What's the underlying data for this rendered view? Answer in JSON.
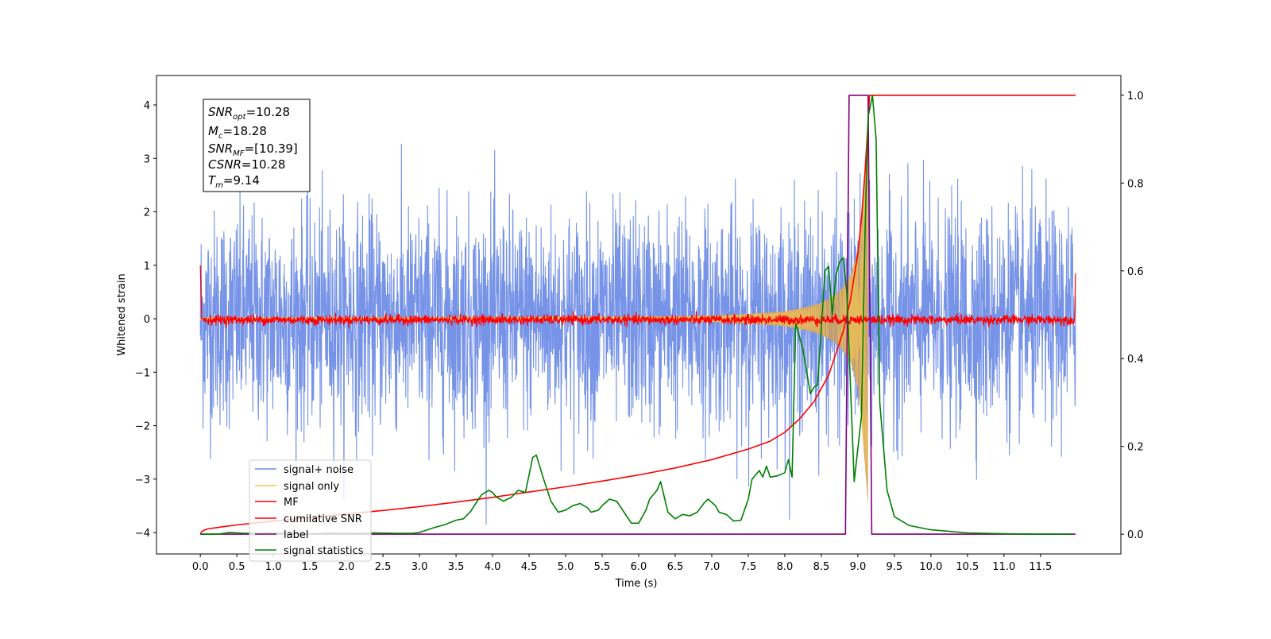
{
  "chart_data": {
    "type": "line",
    "xlabel": "Time (s)",
    "ylabel": "Whitened strain",
    "xlim": [
      -0.6,
      12.6
    ],
    "ylim": [
      -4.4,
      4.55
    ],
    "y2lim": [
      -0.045,
      1.045
    ],
    "grid": false,
    "legend_position": "lower-left",
    "x_ticks": [
      0.0,
      0.5,
      1.0,
      1.5,
      2.0,
      2.5,
      3.0,
      3.5,
      4.0,
      4.5,
      5.0,
      5.5,
      6.0,
      6.5,
      7.0,
      7.5,
      8.0,
      8.5,
      9.0,
      9.5,
      10.0,
      10.5,
      11.0,
      11.5
    ],
    "x_tick_labels": [
      "0.0",
      "0.5",
      "1.0",
      "1.5",
      "2.0",
      "2.5",
      "3.0",
      "3.5",
      "4.0",
      "4.5",
      "5.0",
      "5.5",
      "6.0",
      "6.5",
      "7.0",
      "7.5",
      "8.0",
      "8.5",
      "9.0",
      "9.5",
      "10.0",
      "10.5",
      "11.0",
      "11.5"
    ],
    "y_ticks": [
      4,
      3,
      2,
      1,
      0,
      -1,
      -2,
      -3,
      -4
    ],
    "y_tick_labels": [
      "4",
      "3",
      "2",
      "1",
      "0",
      "−1",
      "−2",
      "−3",
      "−4"
    ],
    "y2_ticks": [
      1.0,
      0.8,
      0.6,
      0.4,
      0.2,
      0.0
    ],
    "y2_tick_labels": [
      "1.0",
      "0.8",
      "0.6",
      "0.4",
      "0.2",
      "0.0"
    ],
    "annotation": [
      {
        "main": "SNR",
        "sub": "opt",
        "rest": "=10.28"
      },
      {
        "main": "M",
        "sub": "c",
        "rest": "=18.28"
      },
      {
        "main": "SNR",
        "sub": "MF",
        "rest": "=[10.39]"
      },
      {
        "main": "CSNR",
        "sub": "",
        "rest": "=10.28"
      },
      {
        "main": "T",
        "sub": "m",
        "rest": "=9.14"
      }
    ],
    "colors": {
      "noise": "#6f8de6",
      "signal": "#f4c451",
      "envelope_fill": "#c9a068",
      "mf": "#ff0000",
      "csnr": "#ff0000",
      "label": "#800080",
      "stats": "#008000"
    },
    "series": [
      {
        "name": "signal+ noise",
        "axis": "left",
        "note_kind": "noise",
        "x_range": [
          0.0,
          11.98
        ],
        "std": 1.0,
        "max_abs": 4.17
      },
      {
        "name": "signal only",
        "axis": "left",
        "note_kind": "chirp",
        "x_range": [
          0.0,
          9.14
        ],
        "envelope_x": [
          0,
          6.0,
          7.0,
          7.5,
          8.0,
          8.3,
          8.5,
          8.7,
          8.8,
          8.9,
          9.0,
          9.05,
          9.1,
          9.14
        ],
        "envelope_y": [
          0.02,
          0.04,
          0.06,
          0.09,
          0.14,
          0.22,
          0.3,
          0.45,
          0.6,
          0.8,
          1.3,
          1.9,
          2.8,
          3.5
        ]
      },
      {
        "name": "MF",
        "axis": "left",
        "note_kind": "noise",
        "x_range": [
          0.0,
          11.98
        ],
        "baseline": -0.02,
        "amplitude": 0.1
      },
      {
        "name": "cumilative SNR",
        "axis": "right",
        "x": [
          0,
          0.02,
          0.05,
          0.1,
          0.3,
          0.5,
          1.0,
          1.5,
          2.0,
          2.5,
          3.0,
          3.5,
          4.0,
          4.5,
          5.0,
          5.5,
          6.0,
          6.5,
          7.0,
          7.5,
          7.8,
          8.0,
          8.2,
          8.4,
          8.6,
          8.8,
          8.9,
          9.0,
          9.05,
          9.1,
          9.14,
          9.16,
          11.98
        ],
        "y": [
          0.0,
          0.006,
          0.009,
          0.012,
          0.017,
          0.021,
          0.03,
          0.038,
          0.046,
          0.054,
          0.063,
          0.073,
          0.084,
          0.096,
          0.108,
          0.121,
          0.135,
          0.151,
          0.17,
          0.194,
          0.212,
          0.232,
          0.262,
          0.302,
          0.362,
          0.462,
          0.535,
          0.64,
          0.72,
          0.83,
          0.94,
          1.0,
          1.0
        ]
      },
      {
        "name": "label",
        "axis": "right",
        "x": [
          0.0,
          8.83,
          8.88,
          9.14,
          9.19,
          11.98
        ],
        "y": [
          0,
          0,
          1,
          1,
          0,
          0
        ]
      },
      {
        "name": "signal statistics",
        "axis": "right",
        "x": [
          0.0,
          0.25,
          0.4,
          0.6,
          0.9,
          1.2,
          1.5,
          1.8,
          2.1,
          2.4,
          2.7,
          2.9,
          3.0,
          3.2,
          3.35,
          3.5,
          3.6,
          3.7,
          3.75,
          3.85,
          3.95,
          4.0,
          4.05,
          4.15,
          4.2,
          4.25,
          4.35,
          4.45,
          4.55,
          4.6,
          4.7,
          4.8,
          4.9,
          5.0,
          5.1,
          5.2,
          5.3,
          5.35,
          5.45,
          5.5,
          5.6,
          5.7,
          5.8,
          5.9,
          6.0,
          6.1,
          6.15,
          6.25,
          6.3,
          6.4,
          6.5,
          6.6,
          6.7,
          6.8,
          6.9,
          6.95,
          7.05,
          7.1,
          7.2,
          7.3,
          7.4,
          7.5,
          7.55,
          7.65,
          7.7,
          7.75,
          7.8,
          7.9,
          8.0,
          8.05,
          8.1,
          8.15,
          8.25,
          8.35,
          8.4,
          8.45,
          8.55,
          8.6,
          8.65,
          8.7,
          8.75,
          8.8,
          8.85,
          8.95,
          9.05,
          9.1,
          9.14,
          9.2,
          9.25,
          9.3,
          9.4,
          9.5,
          9.7,
          10.0,
          10.5,
          11.0,
          11.5,
          11.92
        ],
        "y": [
          0,
          0,
          0.004,
          0.002,
          0.003,
          0.002,
          0.001,
          0.003,
          0.002,
          0.003,
          0.002,
          0.002,
          0.004,
          0.015,
          0.022,
          0.032,
          0.035,
          0.052,
          0.065,
          0.09,
          0.1,
          0.095,
          0.085,
          0.075,
          0.08,
          0.083,
          0.1,
          0.095,
          0.175,
          0.18,
          0.125,
          0.075,
          0.05,
          0.055,
          0.065,
          0.07,
          0.06,
          0.05,
          0.055,
          0.065,
          0.08,
          0.075,
          0.05,
          0.025,
          0.025,
          0.055,
          0.08,
          0.1,
          0.12,
          0.05,
          0.035,
          0.045,
          0.042,
          0.05,
          0.072,
          0.08,
          0.065,
          0.05,
          0.045,
          0.03,
          0.032,
          0.08,
          0.125,
          0.145,
          0.13,
          0.155,
          0.13,
          0.133,
          0.14,
          0.17,
          0.13,
          0.48,
          0.42,
          0.32,
          0.335,
          0.34,
          0.6,
          0.61,
          0.5,
          0.59,
          0.62,
          0.63,
          0.55,
          0.12,
          0.27,
          0.7,
          0.95,
          1.0,
          0.9,
          0.3,
          0.1,
          0.04,
          0.02,
          0.01,
          0.003,
          0.001,
          0.0,
          0.0
        ]
      }
    ]
  }
}
